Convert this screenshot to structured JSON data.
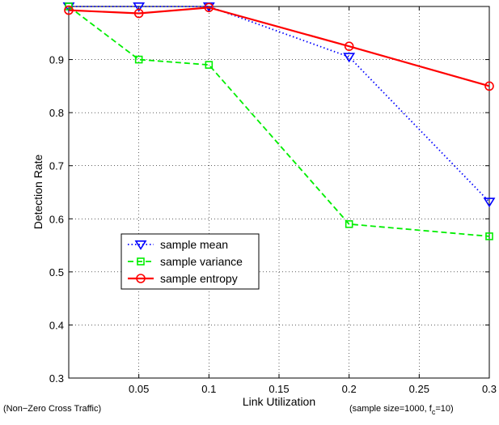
{
  "chart_data": {
    "type": "line",
    "title": "",
    "xlabel": "Link Utilization",
    "ylabel": "Detection Rate",
    "xlim": [
      0.0,
      0.3
    ],
    "ylim": [
      0.3,
      1.0
    ],
    "xticks": [
      0.05,
      0.1,
      0.15,
      0.2,
      0.25,
      0.3
    ],
    "xtick_labels": [
      "0.05",
      "0.1",
      "0.15",
      "0.2",
      "0.25",
      "0.3"
    ],
    "yticks": [
      0.3,
      0.4,
      0.5,
      0.6,
      0.7,
      0.8,
      0.9
    ],
    "ytick_labels": [
      "0.3",
      "0.4",
      "0.5",
      "0.6",
      "0.7",
      "0.8",
      "0.9"
    ],
    "grid": true,
    "legend_position": "center-left",
    "left_note": "(Non−Zero Cross Traffic)",
    "right_note": {
      "prefix": "(sample size=1000, f",
      "subscript": "c",
      "suffix": "=10)"
    },
    "x": [
      0.0,
      0.05,
      0.1,
      0.2,
      0.3
    ],
    "series": [
      {
        "name": "sample mean",
        "color": "#0000ff",
        "line_style": "dotted",
        "marker": "triangle-down",
        "values": [
          1.0,
          1.0,
          1.0,
          0.905,
          0.632
        ]
      },
      {
        "name": "sample variance",
        "color": "#00ee00",
        "line_style": "dashed",
        "marker": "square",
        "values": [
          1.0,
          0.9,
          0.89,
          0.59,
          0.567
        ]
      },
      {
        "name": "sample entropy",
        "color": "#ff0000",
        "line_style": "solid",
        "marker": "circle",
        "values": [
          0.993,
          0.987,
          0.998,
          0.925,
          0.85
        ]
      }
    ]
  }
}
